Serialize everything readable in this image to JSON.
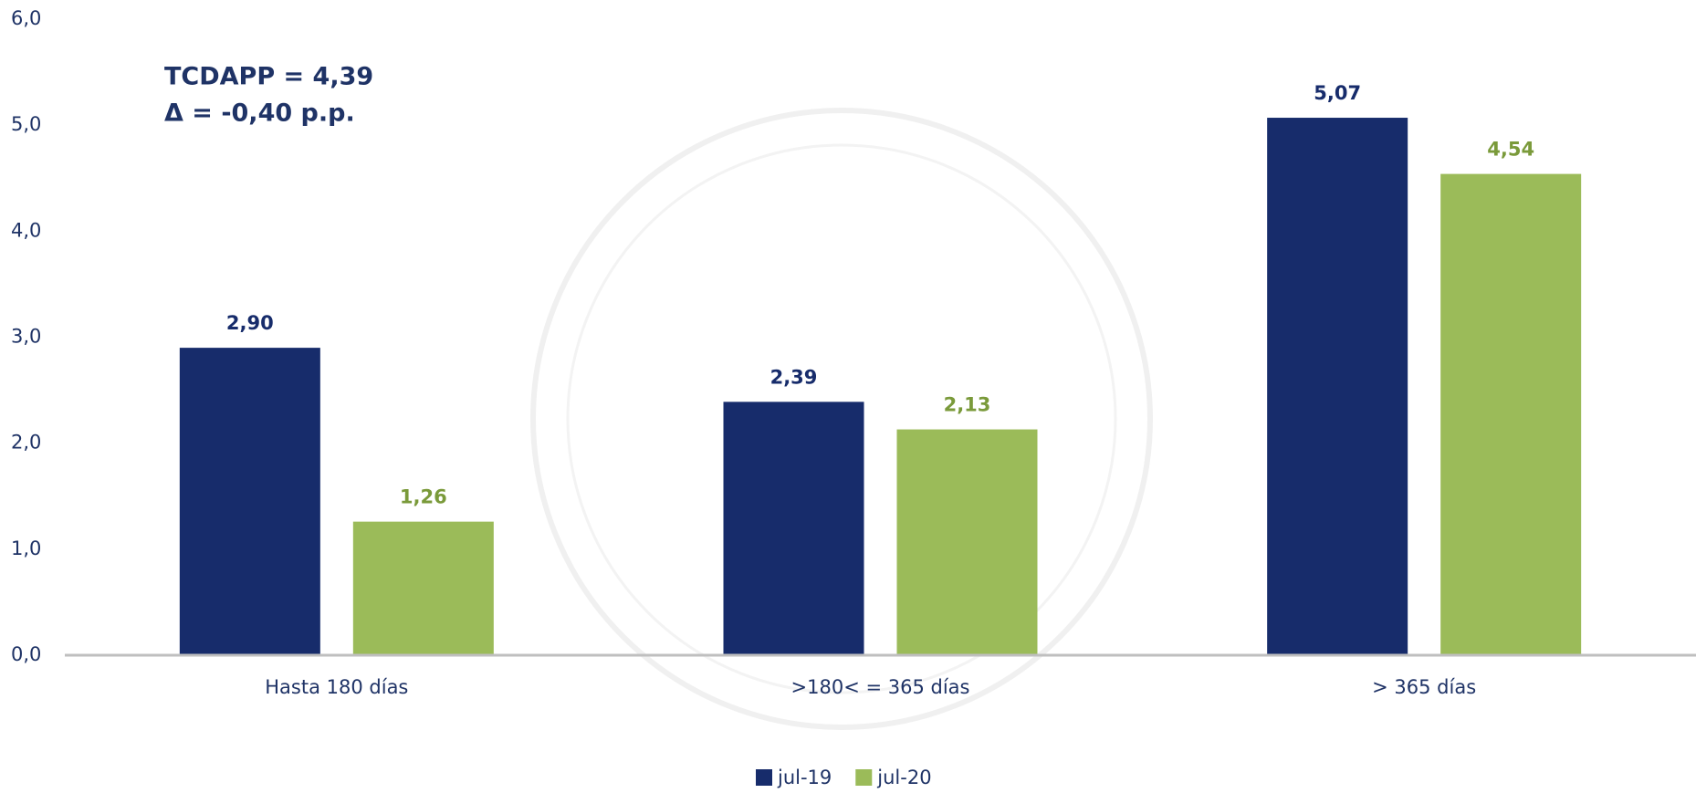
{
  "chart_data": {
    "type": "bar",
    "annotations": [
      "TCDAPP = 4,39",
      "Δ  = -0,40 p.p."
    ],
    "categories": [
      "Hasta 180 días",
      ">180< = 365 días",
      "> 365 días"
    ],
    "series": [
      {
        "name": "jul-19",
        "color": "#172c6b",
        "label_color": "#172c6b",
        "values": [
          2.9,
          2.39,
          5.07
        ],
        "value_labels": [
          "2,90",
          "2,39",
          "5,07"
        ]
      },
      {
        "name": "jul-20",
        "color": "#9bbb59",
        "label_color": "#7a9a3a",
        "values": [
          1.26,
          2.13,
          4.54
        ],
        "value_labels": [
          "1,26",
          "2,13",
          "4,54"
        ]
      }
    ],
    "ylim": [
      0,
      6
    ],
    "yticks": [
      {
        "value": 0,
        "label": "0,0"
      },
      {
        "value": 1,
        "label": "1,0"
      },
      {
        "value": 2,
        "label": "2,0"
      },
      {
        "value": 3,
        "label": "3,0"
      },
      {
        "value": 4,
        "label": "4,0"
      },
      {
        "value": 5,
        "label": "5,0"
      },
      {
        "value": 6,
        "label": "6,0"
      }
    ],
    "grid": false,
    "legend": "bottom"
  }
}
